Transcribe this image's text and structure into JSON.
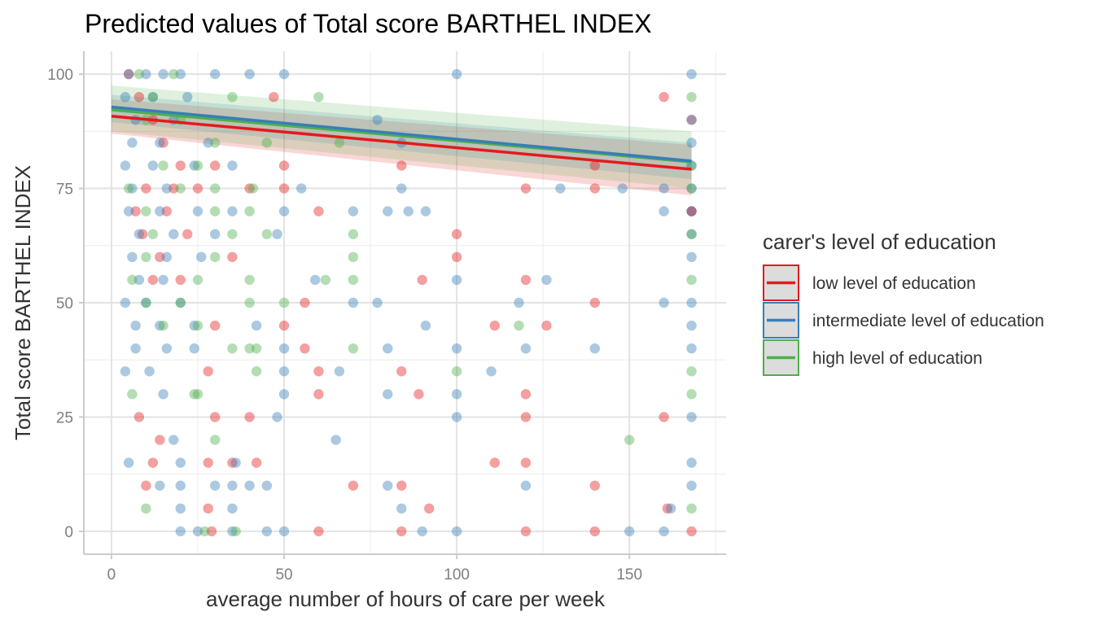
{
  "chart_data": {
    "type": "scatter",
    "title": "Predicted values of Total score BARTHEL INDEX",
    "xlabel": "average number of hours of care per week",
    "ylabel": "Total score BARTHEL INDEX",
    "xlim": [
      -8,
      178
    ],
    "ylim": [
      -5,
      105
    ],
    "x_ticks": [
      0,
      50,
      100,
      150
    ],
    "y_ticks": [
      0,
      25,
      50,
      75,
      100
    ],
    "grid": true,
    "legend": {
      "title": "carer's level of education",
      "placement": "right"
    },
    "series": [
      {
        "name": "low level of education",
        "color": "#e41a1c",
        "line": [
          [
            0,
            90.8
          ],
          [
            168,
            79.2
          ]
        ],
        "ci_upper": [
          [
            0,
            94.5
          ],
          [
            168,
            84.5
          ]
        ],
        "ci_lower": [
          [
            0,
            87.0
          ],
          [
            168,
            73.5
          ]
        ],
        "points": [
          [
            5,
            100
          ],
          [
            8,
            95
          ],
          [
            12,
            90
          ],
          [
            15,
            85
          ],
          [
            20,
            80
          ],
          [
            30,
            80
          ],
          [
            50,
            80
          ],
          [
            84,
            80
          ],
          [
            140,
            80
          ],
          [
            10,
            75
          ],
          [
            18,
            75
          ],
          [
            25,
            75
          ],
          [
            40,
            75
          ],
          [
            50,
            75
          ],
          [
            120,
            75
          ],
          [
            140,
            75
          ],
          [
            7,
            70
          ],
          [
            16,
            70
          ],
          [
            60,
            70
          ],
          [
            168,
            70
          ],
          [
            9,
            65
          ],
          [
            22,
            65
          ],
          [
            100,
            65
          ],
          [
            14,
            60
          ],
          [
            35,
            60
          ],
          [
            100,
            60
          ],
          [
            12,
            55
          ],
          [
            20,
            55
          ],
          [
            90,
            55
          ],
          [
            120,
            55
          ],
          [
            56,
            50
          ],
          [
            140,
            50
          ],
          [
            30,
            45
          ],
          [
            50,
            45
          ],
          [
            111,
            45
          ],
          [
            126,
            45
          ],
          [
            56,
            40
          ],
          [
            28,
            35
          ],
          [
            60,
            35
          ],
          [
            84,
            35
          ],
          [
            60,
            30
          ],
          [
            89,
            30
          ],
          [
            120,
            30
          ],
          [
            8,
            25
          ],
          [
            30,
            25
          ],
          [
            40,
            25
          ],
          [
            120,
            25
          ],
          [
            160,
            25
          ],
          [
            14,
            20
          ],
          [
            12,
            15
          ],
          [
            28,
            15
          ],
          [
            35,
            15
          ],
          [
            42,
            15
          ],
          [
            111,
            15
          ],
          [
            120,
            15
          ],
          [
            10,
            10
          ],
          [
            70,
            10
          ],
          [
            84,
            10
          ],
          [
            140,
            10
          ],
          [
            28,
            5
          ],
          [
            92,
            5
          ],
          [
            161,
            5
          ],
          [
            29,
            0
          ],
          [
            60,
            0
          ],
          [
            84,
            0
          ],
          [
            120,
            0
          ],
          [
            140,
            0
          ],
          [
            168,
            0
          ],
          [
            47,
            95
          ],
          [
            160,
            95
          ],
          [
            168,
            90
          ],
          [
            168,
            70
          ]
        ]
      },
      {
        "name": "intermediate level of education",
        "color": "#377eb8",
        "line": [
          [
            0,
            92.8
          ],
          [
            168,
            81.0
          ]
        ],
        "ci_upper": [
          [
            0,
            95.5
          ],
          [
            168,
            85.0
          ]
        ],
        "ci_lower": [
          [
            0,
            89.5
          ],
          [
            168,
            77.0
          ]
        ],
        "points": [
          [
            5,
            100
          ],
          [
            10,
            100
          ],
          [
            15,
            100
          ],
          [
            20,
            100
          ],
          [
            30,
            100
          ],
          [
            40,
            100
          ],
          [
            50,
            100
          ],
          [
            100,
            100
          ],
          [
            168,
            100
          ],
          [
            4,
            95
          ],
          [
            12,
            95
          ],
          [
            22,
            95
          ],
          [
            7,
            90
          ],
          [
            18,
            90
          ],
          [
            77,
            90
          ],
          [
            168,
            90
          ],
          [
            6,
            85
          ],
          [
            14,
            85
          ],
          [
            28,
            85
          ],
          [
            84,
            85
          ],
          [
            168,
            85
          ],
          [
            4,
            80
          ],
          [
            12,
            80
          ],
          [
            24,
            80
          ],
          [
            35,
            80
          ],
          [
            168,
            80
          ],
          [
            6,
            75
          ],
          [
            16,
            75
          ],
          [
            55,
            75
          ],
          [
            84,
            75
          ],
          [
            130,
            75
          ],
          [
            148,
            75
          ],
          [
            160,
            75
          ],
          [
            168,
            75
          ],
          [
            5,
            70
          ],
          [
            14,
            70
          ],
          [
            25,
            70
          ],
          [
            35,
            70
          ],
          [
            50,
            70
          ],
          [
            70,
            70
          ],
          [
            80,
            70
          ],
          [
            86,
            70
          ],
          [
            91,
            70
          ],
          [
            160,
            70
          ],
          [
            168,
            70
          ],
          [
            8,
            65
          ],
          [
            18,
            65
          ],
          [
            30,
            65
          ],
          [
            48,
            65
          ],
          [
            168,
            65
          ],
          [
            6,
            60
          ],
          [
            16,
            60
          ],
          [
            26,
            60
          ],
          [
            168,
            60
          ],
          [
            8,
            55
          ],
          [
            15,
            55
          ],
          [
            59,
            55
          ],
          [
            100,
            55
          ],
          [
            126,
            55
          ],
          [
            4,
            50
          ],
          [
            10,
            50
          ],
          [
            20,
            50
          ],
          [
            70,
            50
          ],
          [
            77,
            50
          ],
          [
            118,
            50
          ],
          [
            160,
            50
          ],
          [
            168,
            50
          ],
          [
            7,
            45
          ],
          [
            14,
            45
          ],
          [
            24,
            45
          ],
          [
            42,
            45
          ],
          [
            91,
            45
          ],
          [
            168,
            45
          ],
          [
            7,
            40
          ],
          [
            16,
            40
          ],
          [
            24,
            40
          ],
          [
            50,
            40
          ],
          [
            80,
            40
          ],
          [
            100,
            40
          ],
          [
            120,
            40
          ],
          [
            140,
            40
          ],
          [
            168,
            40
          ],
          [
            4,
            35
          ],
          [
            11,
            35
          ],
          [
            50,
            35
          ],
          [
            66,
            35
          ],
          [
            110,
            35
          ],
          [
            15,
            30
          ],
          [
            50,
            30
          ],
          [
            80,
            30
          ],
          [
            100,
            30
          ],
          [
            48,
            25
          ],
          [
            100,
            25
          ],
          [
            168,
            25
          ],
          [
            18,
            20
          ],
          [
            65,
            20
          ],
          [
            5,
            15
          ],
          [
            20,
            15
          ],
          [
            36,
            15
          ],
          [
            168,
            15
          ],
          [
            14,
            10
          ],
          [
            20,
            10
          ],
          [
            30,
            10
          ],
          [
            35,
            10
          ],
          [
            40,
            10
          ],
          [
            45,
            10
          ],
          [
            80,
            10
          ],
          [
            120,
            10
          ],
          [
            168,
            10
          ],
          [
            20,
            5
          ],
          [
            35,
            5
          ],
          [
            84,
            5
          ],
          [
            162,
            5
          ],
          [
            20,
            0
          ],
          [
            25,
            0
          ],
          [
            35,
            0
          ],
          [
            45,
            0
          ],
          [
            50,
            0
          ],
          [
            90,
            0
          ],
          [
            100,
            0
          ],
          [
            150,
            0
          ],
          [
            160,
            0
          ]
        ]
      },
      {
        "name": "high level of education",
        "color": "#4daf4a",
        "line": [
          [
            0,
            92.2
          ],
          [
            168,
            80.8
          ]
        ],
        "ci_upper": [
          [
            0,
            97.5
          ],
          [
            168,
            87.5
          ]
        ],
        "ci_lower": [
          [
            0,
            87.5
          ],
          [
            168,
            75.0
          ]
        ],
        "points": [
          [
            8,
            100
          ],
          [
            18,
            100
          ],
          [
            12,
            95
          ],
          [
            35,
            95
          ],
          [
            60,
            95
          ],
          [
            168,
            95
          ],
          [
            10,
            90
          ],
          [
            20,
            90
          ],
          [
            30,
            85
          ],
          [
            45,
            85
          ],
          [
            66,
            85
          ],
          [
            15,
            80
          ],
          [
            25,
            80
          ],
          [
            168,
            80
          ],
          [
            5,
            75
          ],
          [
            20,
            75
          ],
          [
            30,
            75
          ],
          [
            41,
            75
          ],
          [
            168,
            75
          ],
          [
            10,
            70
          ],
          [
            30,
            70
          ],
          [
            40,
            70
          ],
          [
            12,
            65
          ],
          [
            35,
            65
          ],
          [
            45,
            65
          ],
          [
            70,
            65
          ],
          [
            168,
            65
          ],
          [
            10,
            60
          ],
          [
            30,
            60
          ],
          [
            70,
            60
          ],
          [
            6,
            55
          ],
          [
            25,
            55
          ],
          [
            40,
            55
          ],
          [
            62,
            55
          ],
          [
            70,
            55
          ],
          [
            168,
            55
          ],
          [
            10,
            50
          ],
          [
            20,
            50
          ],
          [
            40,
            50
          ],
          [
            50,
            50
          ],
          [
            15,
            45
          ],
          [
            25,
            45
          ],
          [
            118,
            45
          ],
          [
            35,
            40
          ],
          [
            40,
            40
          ],
          [
            42,
            40
          ],
          [
            70,
            40
          ],
          [
            42,
            35
          ],
          [
            100,
            35
          ],
          [
            168,
            35
          ],
          [
            6,
            30
          ],
          [
            24,
            30
          ],
          [
            25,
            30
          ],
          [
            168,
            30
          ],
          [
            30,
            20
          ],
          [
            150,
            20
          ],
          [
            10,
            5
          ],
          [
            168,
            5
          ],
          [
            27,
            0
          ],
          [
            36,
            0
          ]
        ]
      }
    ]
  }
}
